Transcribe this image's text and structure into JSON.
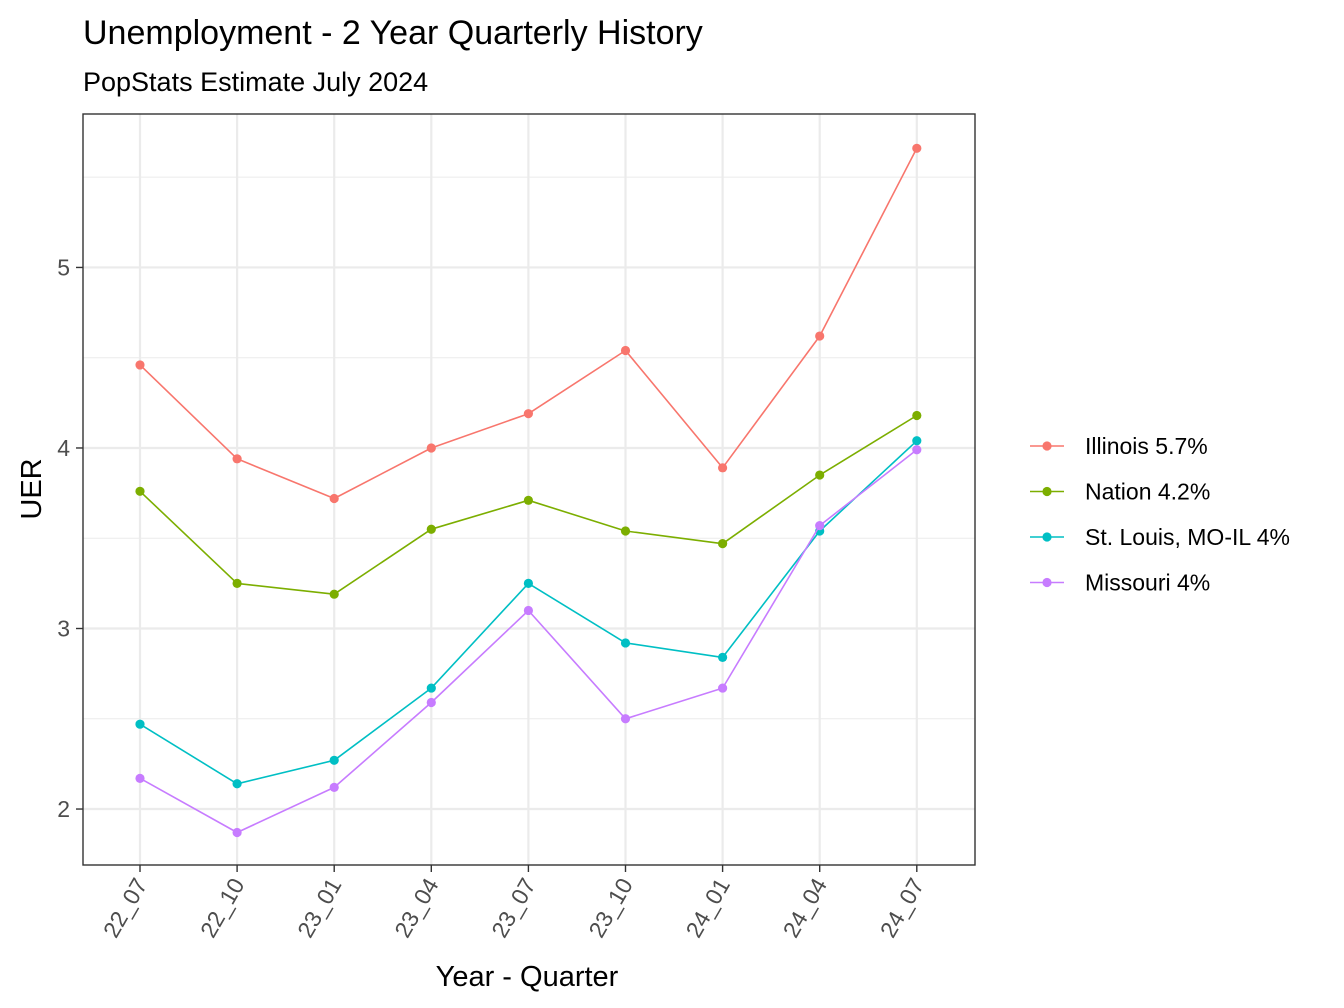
{
  "chart_data": {
    "type": "line",
    "title": "Unemployment - 2 Year Quarterly History",
    "subtitle": "PopStats Estimate July 2024",
    "xlabel": "Year - Quarter",
    "ylabel": "UER",
    "categories": [
      "22_07",
      "22_10",
      "23_01",
      "23_04",
      "23_07",
      "23_10",
      "24_01",
      "24_04",
      "24_07"
    ],
    "yticks": [
      "2",
      "3",
      "4",
      "5"
    ],
    "ylim": [
      1.69,
      5.85
    ],
    "grid": true,
    "legend_position": "right",
    "series": [
      {
        "name": "Illinois 5.7%",
        "color": "#F8766D",
        "values": [
          4.46,
          3.94,
          3.72,
          4.0,
          4.19,
          4.54,
          3.89,
          4.62,
          5.66
        ]
      },
      {
        "name": "Nation 4.2%",
        "color": "#7CAE00",
        "values": [
          3.76,
          3.25,
          3.19,
          3.55,
          3.71,
          3.54,
          3.47,
          3.85,
          4.18
        ]
      },
      {
        "name": "St. Louis, MO-IL 4%",
        "color": "#00BFC4",
        "values": [
          2.47,
          2.14,
          2.27,
          2.67,
          3.25,
          2.92,
          2.84,
          3.54,
          4.04
        ]
      },
      {
        "name": "Missouri 4%",
        "color": "#C77CFF",
        "values": [
          2.17,
          1.87,
          2.12,
          2.59,
          3.1,
          2.5,
          2.67,
          3.57,
          3.99
        ]
      }
    ]
  }
}
